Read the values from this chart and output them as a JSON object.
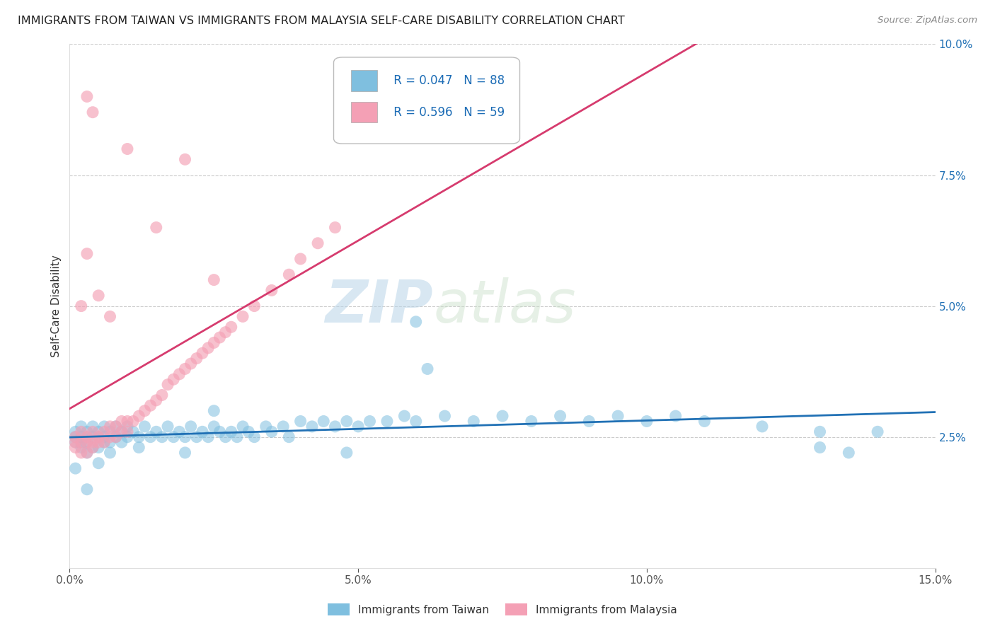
{
  "title": "IMMIGRANTS FROM TAIWAN VS IMMIGRANTS FROM MALAYSIA SELF-CARE DISABILITY CORRELATION CHART",
  "source": "Source: ZipAtlas.com",
  "ylabel_label": "Self-Care Disability",
  "legend_label1": "Immigrants from Taiwan",
  "legend_label2": "Immigrants from Malaysia",
  "R_taiwan": 0.047,
  "N_taiwan": 88,
  "R_malaysia": 0.596,
  "N_malaysia": 59,
  "xlim": [
    0.0,
    0.15
  ],
  "ylim": [
    0.0,
    0.1
  ],
  "color_taiwan": "#7fbfdf",
  "color_malaysia": "#f4a0b5",
  "line_color_taiwan": "#2171b5",
  "line_color_malaysia": "#d63b6e",
  "watermark_zip": "ZIP",
  "watermark_atlas": "atlas",
  "taiwan_x": [
    0.001,
    0.001,
    0.001,
    0.002,
    0.002,
    0.002,
    0.002,
    0.003,
    0.003,
    0.003,
    0.003,
    0.004,
    0.004,
    0.004,
    0.005,
    0.005,
    0.005,
    0.006,
    0.006,
    0.006,
    0.007,
    0.007,
    0.008,
    0.008,
    0.009,
    0.009,
    0.01,
    0.01,
    0.011,
    0.012,
    0.013,
    0.014,
    0.015,
    0.016,
    0.017,
    0.018,
    0.019,
    0.02,
    0.021,
    0.022,
    0.023,
    0.024,
    0.025,
    0.026,
    0.027,
    0.028,
    0.029,
    0.03,
    0.031,
    0.032,
    0.034,
    0.035,
    0.037,
    0.038,
    0.04,
    0.042,
    0.044,
    0.046,
    0.048,
    0.05,
    0.052,
    0.055,
    0.058,
    0.06,
    0.065,
    0.07,
    0.075,
    0.08,
    0.085,
    0.09,
    0.095,
    0.1,
    0.105,
    0.11,
    0.12,
    0.13,
    0.14,
    0.007,
    0.012,
    0.02,
    0.025,
    0.06,
    0.005,
    0.003,
    0.13,
    0.135,
    0.062,
    0.048,
    0.001
  ],
  "taiwan_y": [
    0.026,
    0.025,
    0.024,
    0.027,
    0.025,
    0.024,
    0.023,
    0.026,
    0.025,
    0.024,
    0.022,
    0.027,
    0.025,
    0.023,
    0.026,
    0.025,
    0.023,
    0.027,
    0.025,
    0.024,
    0.026,
    0.024,
    0.027,
    0.025,
    0.026,
    0.024,
    0.027,
    0.025,
    0.026,
    0.025,
    0.027,
    0.025,
    0.026,
    0.025,
    0.027,
    0.025,
    0.026,
    0.025,
    0.027,
    0.025,
    0.026,
    0.025,
    0.027,
    0.026,
    0.025,
    0.026,
    0.025,
    0.027,
    0.026,
    0.025,
    0.027,
    0.026,
    0.027,
    0.025,
    0.028,
    0.027,
    0.028,
    0.027,
    0.028,
    0.027,
    0.028,
    0.028,
    0.029,
    0.028,
    0.029,
    0.028,
    0.029,
    0.028,
    0.029,
    0.028,
    0.029,
    0.028,
    0.029,
    0.028,
    0.027,
    0.026,
    0.026,
    0.022,
    0.023,
    0.022,
    0.03,
    0.047,
    0.02,
    0.015,
    0.023,
    0.022,
    0.038,
    0.022,
    0.019
  ],
  "malaysia_x": [
    0.001,
    0.001,
    0.001,
    0.002,
    0.002,
    0.002,
    0.003,
    0.003,
    0.003,
    0.004,
    0.004,
    0.004,
    0.005,
    0.005,
    0.006,
    0.006,
    0.007,
    0.007,
    0.008,
    0.008,
    0.009,
    0.009,
    0.01,
    0.01,
    0.011,
    0.012,
    0.013,
    0.014,
    0.015,
    0.016,
    0.017,
    0.018,
    0.019,
    0.02,
    0.021,
    0.022,
    0.023,
    0.024,
    0.025,
    0.026,
    0.027,
    0.028,
    0.03,
    0.032,
    0.035,
    0.038,
    0.04,
    0.043,
    0.046,
    0.003,
    0.004,
    0.003,
    0.01,
    0.015,
    0.02,
    0.025,
    0.005,
    0.007,
    0.002
  ],
  "malaysia_y": [
    0.025,
    0.024,
    0.023,
    0.026,
    0.024,
    0.022,
    0.025,
    0.024,
    0.022,
    0.026,
    0.024,
    0.023,
    0.025,
    0.024,
    0.026,
    0.024,
    0.027,
    0.025,
    0.027,
    0.025,
    0.028,
    0.026,
    0.028,
    0.026,
    0.028,
    0.029,
    0.03,
    0.031,
    0.032,
    0.033,
    0.035,
    0.036,
    0.037,
    0.038,
    0.039,
    0.04,
    0.041,
    0.042,
    0.043,
    0.044,
    0.045,
    0.046,
    0.048,
    0.05,
    0.053,
    0.056,
    0.059,
    0.062,
    0.065,
    0.09,
    0.087,
    0.06,
    0.08,
    0.065,
    0.078,
    0.055,
    0.052,
    0.048,
    0.05
  ]
}
